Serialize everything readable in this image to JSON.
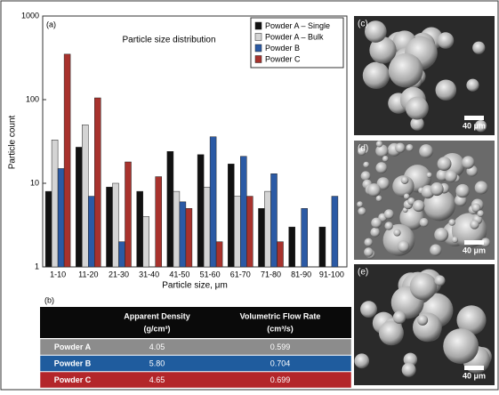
{
  "chart_data": {
    "type": "bar",
    "panel_label": "(a)",
    "title": "Particle size distribution",
    "x_label": "Particle size, μm",
    "y_label": "Particle count",
    "categories": [
      "1-10",
      "11-20",
      "21-30",
      "31-40",
      "41-50",
      "51-60",
      "61-70",
      "71-80",
      "81-90",
      "91-100"
    ],
    "series": [
      {
        "name": "Powder A – Single",
        "color": "#111111",
        "values": [
          8,
          27,
          9,
          8,
          24,
          22,
          17,
          5,
          3,
          3
        ]
      },
      {
        "name": "Powder A – Bulk",
        "color": "#d4d4d4",
        "values": [
          33,
          50,
          10,
          4,
          8,
          9,
          7,
          8,
          null,
          null
        ]
      },
      {
        "name": "Powder B",
        "color": "#2b5aa5",
        "values": [
          15,
          7,
          2,
          null,
          6,
          36,
          21,
          13,
          5,
          7
        ]
      },
      {
        "name": "Powder C",
        "color": "#a8322d",
        "values": [
          350,
          105,
          18,
          12,
          5,
          2,
          7,
          2,
          null,
          null
        ]
      }
    ],
    "ylim": [
      1,
      1000
    ],
    "yticks": [
      1,
      10,
      100,
      1000
    ],
    "log_y": true,
    "grid": false,
    "legend": "upper right"
  },
  "table": {
    "panel_label": "(b)",
    "headers": [
      {
        "title": "Apparent Density",
        "unit": "(g/cm³)"
      },
      {
        "title": "Volumetric Flow Rate",
        "unit": "(cm³/s)"
      }
    ],
    "rows": [
      [
        "Powder A",
        "4.05",
        "0.599"
      ],
      [
        "Powder B",
        "5.80",
        "0.704"
      ],
      [
        "Powder C",
        "4.65",
        "0.699"
      ]
    ],
    "row_colors": [
      "#8c8c8c",
      "#1f5c9e",
      "#b3262a"
    ]
  },
  "images": [
    {
      "label": "(c)",
      "scale": "40 μm"
    },
    {
      "label": "(d)",
      "scale": "40 μm"
    },
    {
      "label": "(e)",
      "scale": "40 μm"
    }
  ]
}
